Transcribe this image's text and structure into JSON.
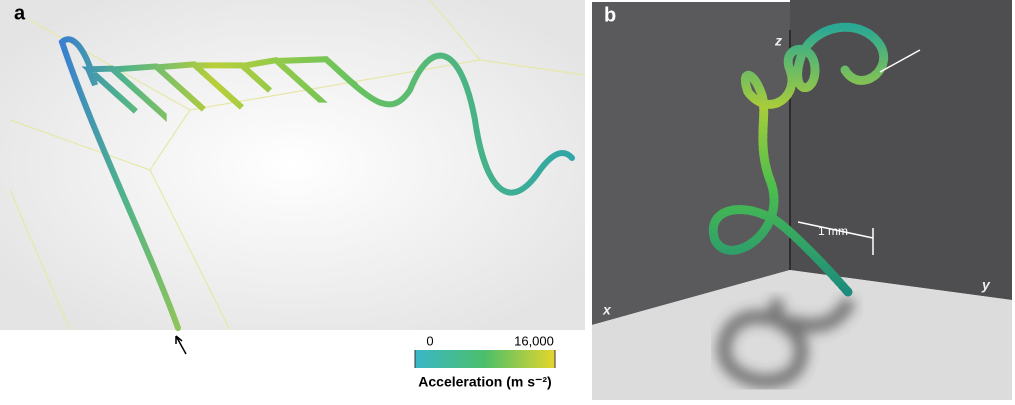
{
  "panels": [
    {
      "label": "a"
    },
    {
      "label": "b",
      "axes": [
        "z",
        "x",
        "y"
      ],
      "scale_bar": "1 mm"
    }
  ],
  "colorbar": {
    "ticks": [
      0,
      {
        "value": 16000,
        "label": "16,000"
      }
    ],
    "title": "Acceleration (m s⁻²)"
  }
}
